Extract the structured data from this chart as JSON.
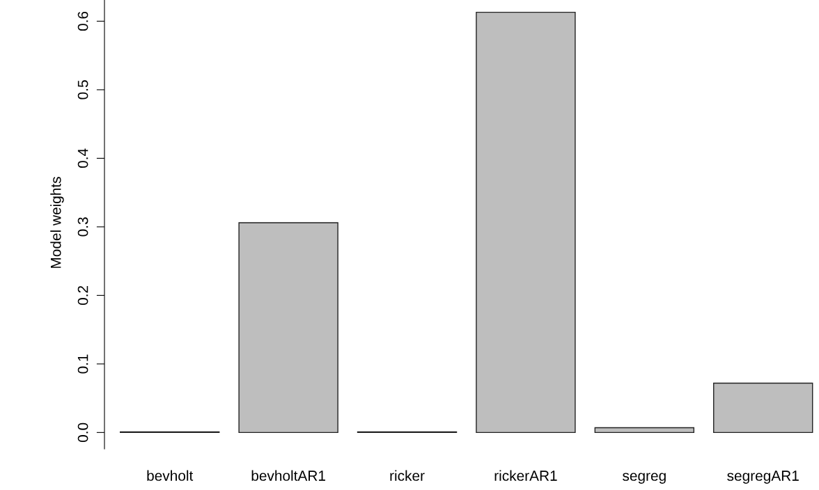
{
  "chart_data": {
    "type": "bar",
    "ylabel": "Model weights",
    "categories": [
      "bevholt",
      "bevholtAR1",
      "ricker",
      "rickerAR1",
      "segreg",
      "segregAR1"
    ],
    "values": [
      0.001,
      0.306,
      0.001,
      0.613,
      0.007,
      0.072
    ],
    "color": "#bebebe",
    "ylim": [
      -0.024,
      0.636
    ],
    "yticks": [
      {
        "value": 0,
        "label": "0.0"
      },
      {
        "value": 0.1,
        "label": "0.1"
      },
      {
        "value": 0.2,
        "label": "0.2"
      },
      {
        "value": 0.3,
        "label": "0.3"
      },
      {
        "value": 0.4,
        "label": "0.4"
      },
      {
        "value": 0.5,
        "label": "0.5"
      },
      {
        "value": 0.6,
        "label": "0.6"
      }
    ],
    "grid": false
  }
}
